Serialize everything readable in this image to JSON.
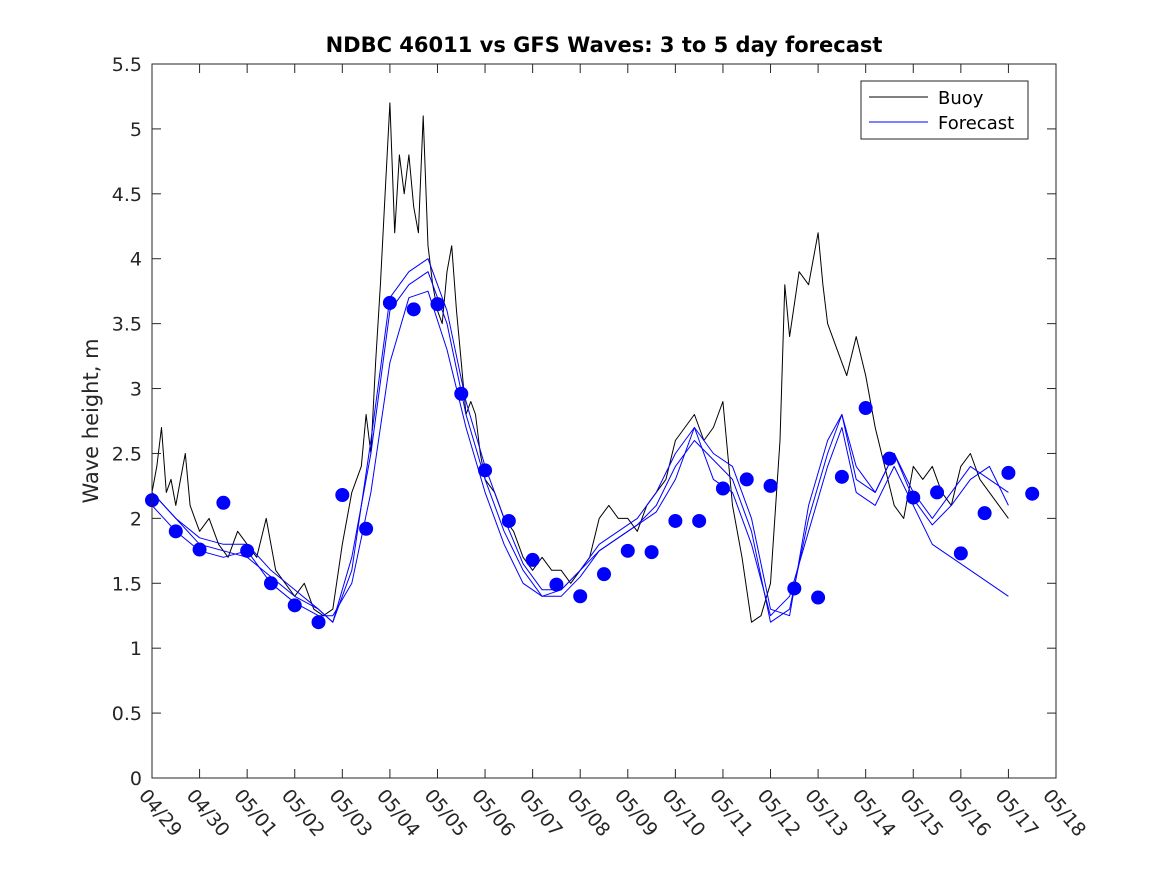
{
  "chart_data": {
    "type": "line",
    "title": "NDBC 46011 vs GFS Waves: 3 to 5 day forecast",
    "xlabel": "",
    "ylabel": "Wave height, m",
    "xlim": [
      0,
      19
    ],
    "ylim": [
      0,
      5.5
    ],
    "x_ticks": [
      0,
      1,
      2,
      3,
      4,
      5,
      6,
      7,
      8,
      9,
      10,
      11,
      12,
      13,
      14,
      15,
      16,
      17,
      18,
      19
    ],
    "x_tick_labels": [
      "04/29",
      "04/30",
      "05/01",
      "05/02",
      "05/03",
      "05/04",
      "05/05",
      "05/06",
      "05/07",
      "05/08",
      "05/09",
      "05/10",
      "05/11",
      "05/12",
      "05/13",
      "05/14",
      "05/15",
      "05/16",
      "05/17",
      "05/18"
    ],
    "y_ticks": [
      0,
      0.5,
      1,
      1.5,
      2,
      2.5,
      3,
      3.5,
      4,
      4.5,
      5,
      5.5
    ],
    "y_tick_labels": [
      "0",
      "0.5",
      "1",
      "1.5",
      "2",
      "2.5",
      "3",
      "3.5",
      "4",
      "4.5",
      "5",
      "5.5"
    ],
    "grid": false,
    "legend_position": "top-right",
    "colors": {
      "buoy": "#000000",
      "forecast": "#0000ff"
    },
    "series": [
      {
        "name": "Buoy",
        "style": "line",
        "x": [
          0,
          0.1,
          0.2,
          0.3,
          0.4,
          0.5,
          0.6,
          0.7,
          0.8,
          0.9,
          1.0,
          1.2,
          1.4,
          1.6,
          1.8,
          2.0,
          2.2,
          2.4,
          2.6,
          2.8,
          3.0,
          3.2,
          3.4,
          3.6,
          3.8,
          4.0,
          4.2,
          4.4,
          4.5,
          4.6,
          4.7,
          4.8,
          4.9,
          5.0,
          5.1,
          5.2,
          5.3,
          5.4,
          5.5,
          5.6,
          5.7,
          5.8,
          5.9,
          6.0,
          6.1,
          6.2,
          6.3,
          6.4,
          6.5,
          6.6,
          6.7,
          6.8,
          6.9,
          7.0,
          7.2,
          7.4,
          7.6,
          7.8,
          8.0,
          8.2,
          8.4,
          8.6,
          8.8,
          9.0,
          9.2,
          9.4,
          9.6,
          9.8,
          10.0,
          10.2,
          10.4,
          10.6,
          10.8,
          11.0,
          11.2,
          11.4,
          11.6,
          11.8,
          12.0,
          12.2,
          12.4,
          12.6,
          12.8,
          13.0,
          13.2,
          13.3,
          13.4,
          13.6,
          13.8,
          14.0,
          14.1,
          14.2,
          14.4,
          14.6,
          14.8,
          15.0,
          15.2,
          15.4,
          15.6,
          15.8,
          16.0,
          16.2,
          16.4,
          16.6,
          16.8,
          17.0,
          17.2,
          17.4,
          17.6,
          17.8,
          18.0
        ],
        "y": [
          2.2,
          2.4,
          2.7,
          2.2,
          2.3,
          2.1,
          2.3,
          2.5,
          2.1,
          2.0,
          1.9,
          2.0,
          1.8,
          1.7,
          1.9,
          1.8,
          1.7,
          2.0,
          1.6,
          1.5,
          1.4,
          1.5,
          1.3,
          1.25,
          1.3,
          1.8,
          2.2,
          2.4,
          2.8,
          2.5,
          3.2,
          3.8,
          4.5,
          5.2,
          4.2,
          4.8,
          4.5,
          4.8,
          4.4,
          4.2,
          5.1,
          4.1,
          3.8,
          3.6,
          3.5,
          3.9,
          4.1,
          3.6,
          3.2,
          2.8,
          2.9,
          2.8,
          2.5,
          2.3,
          2.2,
          2.0,
          1.9,
          1.7,
          1.6,
          1.7,
          1.6,
          1.6,
          1.5,
          1.6,
          1.7,
          2.0,
          2.1,
          2.0,
          2.0,
          1.9,
          2.1,
          2.2,
          2.3,
          2.6,
          2.7,
          2.8,
          2.6,
          2.7,
          2.9,
          2.1,
          1.7,
          1.2,
          1.25,
          1.5,
          2.6,
          3.8,
          3.4,
          3.9,
          3.8,
          4.2,
          3.8,
          3.5,
          3.3,
          3.1,
          3.4,
          3.1,
          2.7,
          2.4,
          2.1,
          2.0,
          2.4,
          2.3,
          2.4,
          2.2,
          2.1,
          2.4,
          2.5,
          2.3,
          2.2,
          2.1,
          2.0
        ]
      },
      {
        "name": "Forecast",
        "style": "line",
        "x": [
          0,
          0.5,
          1.0,
          1.5,
          2.0,
          2.5,
          3.0,
          3.5,
          3.8,
          4.2,
          4.6,
          5.0,
          5.4,
          5.8,
          6.2,
          6.6,
          7.0,
          7.4,
          7.8,
          8.2,
          8.6,
          9.0,
          9.4,
          9.8,
          10.2,
          10.6,
          11.0,
          11.4,
          11.8,
          12.2,
          12.6,
          13.0,
          13.4,
          13.8,
          14.2,
          14.5,
          14.8,
          15.2,
          15.6,
          16.0,
          16.4,
          16.8,
          17.2,
          17.6,
          18.0
        ],
        "y": [
          2.2,
          2.0,
          1.8,
          1.75,
          1.7,
          1.55,
          1.4,
          1.3,
          1.2,
          1.7,
          2.5,
          3.6,
          3.8,
          3.9,
          3.5,
          2.8,
          2.3,
          1.9,
          1.6,
          1.4,
          1.4,
          1.55,
          1.75,
          1.85,
          1.95,
          2.1,
          2.4,
          2.6,
          2.45,
          2.3,
          1.9,
          1.2,
          1.3,
          2.0,
          2.5,
          2.8,
          2.3,
          2.2,
          2.5,
          2.15,
          1.95,
          2.1,
          2.3,
          2.4,
          2.1
        ]
      },
      {
        "name": "",
        "style": "line",
        "x": [
          0,
          0.5,
          1.0,
          1.5,
          2.0,
          2.5,
          3.0,
          3.5,
          3.8,
          4.2,
          4.6,
          5.0,
          5.4,
          5.8,
          6.2,
          6.6,
          7.0,
          7.4,
          7.8,
          8.2,
          8.6,
          9.0,
          9.4,
          9.8,
          10.2,
          10.6,
          11.0,
          11.4,
          11.8,
          12.2,
          12.6,
          13.0,
          13.4,
          13.8,
          14.2,
          14.5,
          14.8,
          15.2,
          15.6,
          16.0,
          16.4,
          16.8,
          17.2,
          17.6,
          18.0
        ],
        "y": [
          2.1,
          1.9,
          1.75,
          1.7,
          1.75,
          1.5,
          1.35,
          1.25,
          1.25,
          1.5,
          2.2,
          3.2,
          3.7,
          3.75,
          3.3,
          2.7,
          2.2,
          1.8,
          1.5,
          1.4,
          1.45,
          1.6,
          1.8,
          1.9,
          2.0,
          2.2,
          2.5,
          2.7,
          2.3,
          2.2,
          1.8,
          1.25,
          1.4,
          1.9,
          2.4,
          2.7,
          2.2,
          2.1,
          2.4,
          2.1,
          1.8,
          1.7,
          1.6,
          1.5,
          1.4
        ]
      },
      {
        "name": "",
        "style": "line",
        "x": [
          0,
          0.5,
          1.0,
          1.5,
          2.0,
          2.5,
          3.0,
          3.5,
          3.8,
          4.2,
          4.6,
          5.0,
          5.4,
          5.8,
          6.2,
          6.6,
          7.0,
          7.4,
          7.8,
          8.2,
          8.6,
          9.0,
          9.4,
          9.8,
          10.2,
          10.6,
          11.0,
          11.4,
          11.8,
          12.2,
          12.6,
          13.0,
          13.4,
          13.8,
          14.2,
          14.5,
          14.8,
          15.2,
          15.6,
          16.0,
          16.4,
          16.8,
          17.2,
          17.6,
          18.0
        ],
        "y": [
          2.2,
          2.0,
          1.85,
          1.8,
          1.8,
          1.6,
          1.45,
          1.3,
          1.2,
          1.6,
          2.6,
          3.7,
          3.9,
          4.0,
          3.6,
          2.9,
          2.4,
          2.0,
          1.65,
          1.45,
          1.45,
          1.6,
          1.75,
          1.85,
          1.95,
          2.05,
          2.3,
          2.7,
          2.5,
          2.4,
          2.0,
          1.3,
          1.25,
          2.1,
          2.6,
          2.8,
          2.4,
          2.2,
          2.5,
          2.2,
          2.0,
          2.2,
          2.4,
          2.3,
          2.2
        ]
      },
      {
        "name": "",
        "style": "markers",
        "x": [
          0,
          0.5,
          1.0,
          1.5,
          2.0,
          2.5,
          3.0,
          3.5,
          4.0,
          4.5,
          5.0,
          5.5,
          6.0,
          6.5,
          7.0,
          7.5,
          8.0,
          8.5,
          9.0,
          9.5,
          10.0,
          10.5,
          11.0,
          11.5,
          12.0,
          12.5,
          13.0,
          13.5,
          14.0,
          14.5,
          15.0,
          15.5,
          16.0,
          16.5,
          17.0,
          17.5,
          18.0,
          18.5
        ],
        "y": [
          2.14,
          1.9,
          1.76,
          2.12,
          1.75,
          1.5,
          1.33,
          1.2,
          2.18,
          1.92,
          3.66,
          3.61,
          3.65,
          2.96,
          2.37,
          1.98,
          1.68,
          1.49,
          1.4,
          1.57,
          1.75,
          1.74,
          1.98,
          1.98,
          2.23,
          2.3,
          2.25,
          1.46,
          1.39,
          2.32,
          2.85,
          2.46,
          2.16,
          2.2,
          1.73,
          2.04,
          2.35,
          2.19
        ]
      }
    ]
  }
}
